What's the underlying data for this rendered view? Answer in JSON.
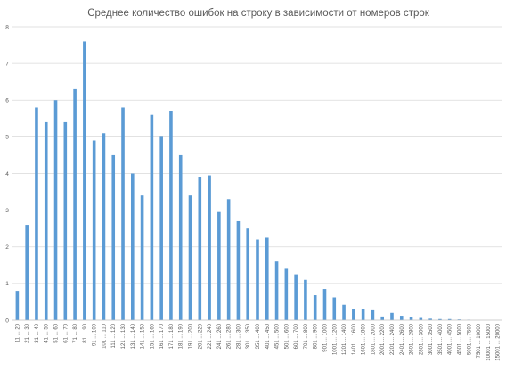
{
  "chart_data": {
    "type": "bar",
    "title": "Среднее количество ошибок на строку в зависимости от номеров строк",
    "xlabel": "",
    "ylabel": "",
    "ylim": [
      0,
      8
    ],
    "yticks": [
      0,
      1,
      2,
      3,
      4,
      5,
      6,
      7,
      8
    ],
    "grid": true,
    "legend": "none",
    "bar_color": "#5b9bd5",
    "categories": [
      "11 ... 20",
      "21 ... 30",
      "31 ... 40",
      "41 ... 50",
      "51 ... 60",
      "61 ... 70",
      "71 ... 80",
      "81 ... 90",
      "91 ... 100",
      "101 ... 110",
      "111 ... 120",
      "121 ... 130",
      "131 ... 140",
      "141 ... 150",
      "151 ... 160",
      "161 ... 170",
      "171 ... 180",
      "181 ... 190",
      "191 ... 200",
      "201 ... 220",
      "221 ... 240",
      "241 ... 260",
      "261 ... 280",
      "281 ... 300",
      "301 ... 350",
      "351 ... 400",
      "401 ... 450",
      "451 ... 500",
      "501 ... 600",
      "601 ... 700",
      "701 ... 800",
      "801 ... 900",
      "901 ... 1000",
      "1001 ... 1200",
      "1201 ... 1400",
      "1401 ... 1600",
      "1601 ... 1800",
      "1801 ... 2000",
      "2001 ... 2200",
      "2201 ... 2400",
      "2401 ... 2600",
      "2601 ... 2800",
      "2801 ... 3000",
      "3001 ... 3500",
      "3501 ... 4000",
      "4001 ... 4500",
      "4501 ... 5000",
      "5001 ... 7500",
      "7501 ... 10000",
      "10001 ... 15000",
      "15001 ... 20000"
    ],
    "values": [
      0.8,
      2.6,
      5.8,
      5.4,
      6.0,
      5.4,
      6.3,
      7.6,
      4.9,
      5.1,
      4.5,
      5.8,
      4.0,
      3.4,
      5.6,
      5.0,
      5.7,
      4.5,
      3.4,
      3.9,
      3.95,
      2.95,
      3.3,
      2.7,
      2.5,
      2.2,
      2.25,
      1.6,
      1.4,
      1.25,
      1.1,
      0.68,
      0.85,
      0.62,
      0.42,
      0.3,
      0.3,
      0.27,
      0.1,
      0.2,
      0.12,
      0.08,
      0.06,
      0.04,
      0.03,
      0.03,
      0.02,
      0.01,
      0.0,
      0.0,
      0.0
    ]
  }
}
